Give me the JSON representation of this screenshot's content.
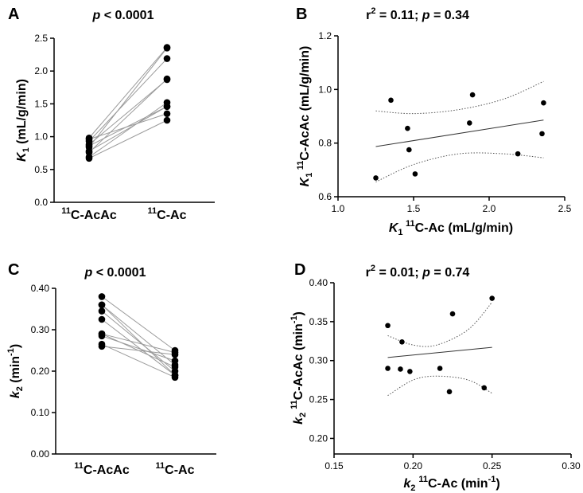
{
  "chart_data": [
    {
      "panel": "A",
      "type": "line",
      "subtype": "paired-dot",
      "title": "p < 0.0001",
      "title_parts": {
        "italic": "p",
        "rest": " < 0.0001"
      },
      "xlabel": "",
      "ylabel": "K1 (mL/g/min)",
      "ylabel_parts": {
        "main": "K",
        "sub": "1",
        "rest": " (mL/g/min)"
      },
      "categories": [
        "11C-AcAc",
        "11C-Ac"
      ],
      "category_parts": [
        {
          "sup": "11",
          "rest": "C-AcAc"
        },
        {
          "sup": "11",
          "rest": "C-Ac"
        }
      ],
      "ylim": [
        0,
        2.5
      ],
      "yticks": [
        "0.0",
        "0.5",
        "1.0",
        "1.5",
        "2.0",
        "2.5"
      ],
      "pairs": [
        [
          0.67,
          1.25
        ],
        [
          0.69,
          1.52
        ],
        [
          0.76,
          1.88
        ],
        [
          0.78,
          1.46
        ],
        [
          0.84,
          2.35
        ],
        [
          0.86,
          1.46
        ],
        [
          0.88,
          1.87
        ],
        [
          0.93,
          2.19
        ],
        [
          0.96,
          1.35
        ],
        [
          0.98,
          2.36
        ]
      ]
    },
    {
      "panel": "B",
      "type": "scatter",
      "title": "r2 = 0.11; p = 0.34",
      "title_parts": {
        "r": "r",
        "sup": "2",
        "mid": " = 0.11; ",
        "italic": "p",
        "rest": " = 0.34"
      },
      "xlabel": "K1 11C-Ac (mL/g/min)",
      "xlabel_parts": {
        "main": "K",
        "sub": "1",
        "sup": "11",
        "rest": "C-Ac (mL/g/min)"
      },
      "ylabel": "K1 11C-AcAc (mL/g/min)",
      "ylabel_parts": {
        "main": "K",
        "sub": "1",
        "sup": "11",
        "rest": "C-AcAc (mL/g/min)"
      },
      "xlim": [
        1.0,
        2.5
      ],
      "ylim": [
        0.6,
        1.2
      ],
      "xticks": [
        "1.0",
        "1.5",
        "2.0",
        "2.5"
      ],
      "yticks": [
        "0.6",
        "0.8",
        "1.0",
        "1.2"
      ],
      "x": [
        1.25,
        1.35,
        1.46,
        1.47,
        1.51,
        1.87,
        1.89,
        2.19,
        2.35,
        2.36
      ],
      "y": [
        0.67,
        0.96,
        0.855,
        0.775,
        0.685,
        0.875,
        0.98,
        0.76,
        0.835,
        0.95
      ],
      "fit": {
        "x": [
          1.25,
          2.36
        ],
        "y": [
          0.787,
          0.886
        ]
      },
      "ci_upper": {
        "x": [
          1.25,
          1.5,
          1.8,
          2.1,
          2.36
        ],
        "y": [
          0.92,
          0.91,
          0.925,
          0.965,
          1.03
        ]
      },
      "ci_lower": {
        "x": [
          1.25,
          1.5,
          1.8,
          2.1,
          2.36
        ],
        "y": [
          0.655,
          0.72,
          0.76,
          0.76,
          0.745
        ]
      }
    },
    {
      "panel": "C",
      "type": "line",
      "subtype": "paired-dot",
      "title": "p < 0.0001",
      "title_parts": {
        "italic": "p",
        "rest": " < 0.0001"
      },
      "xlabel": "",
      "ylabel": "k2 (min-1)",
      "ylabel_parts": {
        "main": "k",
        "sub": "2",
        "rest": " (min",
        "sup": "-1",
        "close": ")"
      },
      "categories": [
        "11C-AcAc",
        "11C-Ac"
      ],
      "category_parts": [
        {
          "sup": "11",
          "rest": "C-AcAc"
        },
        {
          "sup": "11",
          "rest": "C-Ac"
        }
      ],
      "ylim": [
        0,
        0.4
      ],
      "yticks": [
        "0.00",
        "0.10",
        "0.20",
        "0.30",
        "0.40"
      ],
      "pairs": [
        [
          0.26,
          0.24
        ],
        [
          0.265,
          0.185
        ],
        [
          0.285,
          0.225
        ],
        [
          0.29,
          0.21
        ],
        [
          0.29,
          0.245
        ],
        [
          0.325,
          0.19
        ],
        [
          0.345,
          0.2
        ],
        [
          0.36,
          0.19
        ],
        [
          0.36,
          0.215
        ],
        [
          0.38,
          0.25
        ]
      ]
    },
    {
      "panel": "D",
      "type": "scatter",
      "title": "r2 = 0.01; p = 0.74",
      "title_parts": {
        "r": "r",
        "sup": "2",
        "mid": " = 0.01; ",
        "italic": "p",
        "rest": " = 0.74"
      },
      "xlabel": "k2 11C-Ac (min-1)",
      "xlabel_parts": {
        "main": "k",
        "sub": "2",
        "sup": "11",
        "rest": "C-Ac (min",
        "sup2": "-1",
        "close": ")"
      },
      "ylabel": "k2 11C-AcAc (min-1)",
      "ylabel_parts": {
        "main": "k",
        "sub": "2",
        "sup": "11",
        "rest": "C-AcAc (min",
        "sup2": "-1",
        "close": ")"
      },
      "xlim": [
        0.15,
        0.3
      ],
      "ylim": [
        0.18,
        0.4
      ],
      "xticks": [
        "0.15",
        "0.20",
        "0.25",
        "0.30"
      ],
      "yticks": [
        "0.20",
        "0.25",
        "0.30",
        "0.35",
        "0.40"
      ],
      "x": [
        0.184,
        0.184,
        0.192,
        0.193,
        0.198,
        0.217,
        0.223,
        0.225,
        0.245,
        0.25
      ],
      "y": [
        0.345,
        0.29,
        0.289,
        0.324,
        0.286,
        0.29,
        0.26,
        0.36,
        0.265,
        0.38
      ],
      "fit": {
        "x": [
          0.184,
          0.25
        ],
        "y": [
          0.304,
          0.317
        ]
      },
      "ci_upper": {
        "x": [
          0.184,
          0.2,
          0.215,
          0.235,
          0.25
        ],
        "y": [
          0.332,
          0.32,
          0.32,
          0.34,
          0.375
        ]
      },
      "ci_lower": {
        "x": [
          0.184,
          0.2,
          0.215,
          0.235,
          0.25
        ],
        "y": [
          0.255,
          0.275,
          0.28,
          0.275,
          0.258
        ]
      }
    }
  ]
}
